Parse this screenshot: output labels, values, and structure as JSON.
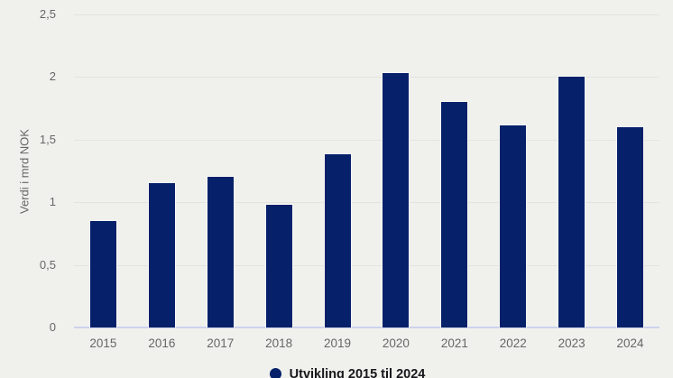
{
  "chart_data": {
    "type": "bar",
    "title": "",
    "categories": [
      "2015",
      "2016",
      "2017",
      "2018",
      "2019",
      "2020",
      "2021",
      "2022",
      "2023",
      "2024"
    ],
    "values": [
      0.86,
      1.16,
      1.21,
      0.99,
      1.39,
      2.04,
      1.81,
      1.62,
      2.01,
      1.61
    ],
    "series_name": "Utvikling 2015 til 2024",
    "xlabel": "",
    "ylabel": "Verdi i mrd NOK",
    "ylim": [
      0,
      2.5
    ],
    "yticks": [
      0,
      0.5,
      1,
      1.5,
      2,
      2.5
    ],
    "ytick_labels": [
      "0",
      "0,5",
      "1",
      "1,5",
      "2",
      "2,5"
    ],
    "grid": true,
    "legend_position": "bottom"
  },
  "legend": {
    "label": "Utvikling 2015 til 2024"
  },
  "colors": {
    "bar": "#062169",
    "background": "#f0f1ed",
    "gridline": "#e3e4e0",
    "axis_line": "#ccd3ec",
    "tick_text": "#666666",
    "legend_text": "#17171c"
  }
}
